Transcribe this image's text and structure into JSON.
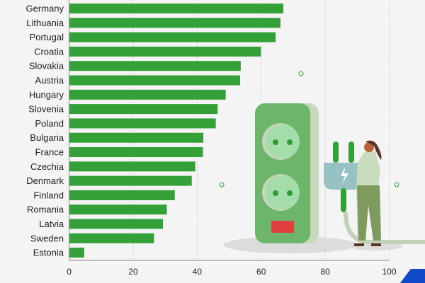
{
  "chart_data": {
    "type": "bar",
    "orientation": "horizontal",
    "categories": [
      "Germany",
      "Lithuania",
      "Portugal",
      "Croatia",
      "Slovakia",
      "Austria",
      "Hungary",
      "Slovenia",
      "Poland",
      "Bulgaria",
      "France",
      "Czechia",
      "Denmark",
      "Finland",
      "Romania",
      "Latvia",
      "Sweden",
      "Estonia"
    ],
    "values": [
      66.8,
      65.9,
      64.4,
      59.8,
      53.5,
      53.3,
      48.8,
      46.3,
      45.7,
      41.8,
      41.7,
      39.3,
      38.2,
      32.9,
      30.4,
      29.2,
      26.4,
      4.6
    ],
    "xlim": [
      0,
      100
    ],
    "xticks": [
      "0",
      "20",
      "40",
      "60",
      "80",
      "100"
    ],
    "grid": "vertical dashed",
    "bar_color": "#34a038"
  },
  "colors": {
    "background": "#f4f4f4",
    "accent_blue": "#1048c8"
  }
}
